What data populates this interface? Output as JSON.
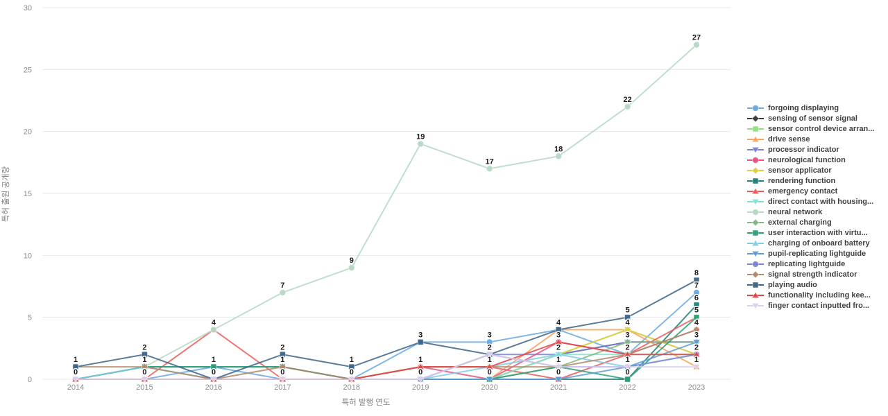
{
  "chart_data": {
    "type": "line",
    "title": "",
    "xlabel": "특허 발행 연도",
    "ylabel": "특허 출원 공개량",
    "x_ticks": [
      "2014",
      "2015",
      "2016",
      "2017",
      "2018",
      "2019",
      "2020",
      "2021",
      "2022",
      "2023"
    ],
    "y_ticks": [
      0,
      5,
      10,
      15,
      20,
      25,
      30
    ],
    "ylim": [
      0,
      30
    ],
    "grid": "horizontal",
    "gridline_color": "#e8e8e8",
    "tick_label_color": "#8c8c8c",
    "point_label_color": "#1a1a1a",
    "legend_position": "right",
    "point_labels": "one bold label per unique value per year, above points",
    "series": [
      {
        "name": "forgoing displaying",
        "color": "#6aa9e0",
        "shape": "circle",
        "values": [
          0,
          0,
          1,
          0,
          0,
          3,
          3,
          4,
          2,
          7
        ]
      },
      {
        "name": "sensing of sensor signal",
        "color": "#3a3a3a",
        "shape": "diamond",
        "values": [
          0,
          0,
          0,
          0,
          0,
          0,
          0,
          2,
          3,
          3
        ]
      },
      {
        "name": "sensor control device arran...",
        "color": "#8ee07f",
        "shape": "square",
        "values": [
          0,
          0,
          0,
          0,
          0,
          0,
          0,
          2,
          4,
          2
        ]
      },
      {
        "name": "drive sense",
        "color": "#f5a25b",
        "shape": "triangle-up",
        "values": [
          0,
          0,
          0,
          0,
          0,
          0,
          0,
          4,
          4,
          1
        ]
      },
      {
        "name": "processor indicator",
        "color": "#7a7fd9",
        "shape": "triangle-down",
        "values": [
          0,
          0,
          0,
          0,
          0,
          0,
          2,
          2,
          3,
          3
        ]
      },
      {
        "name": "neurological function",
        "color": "#e8537f",
        "shape": "circle",
        "values": [
          0,
          0,
          0,
          0,
          0,
          1,
          0,
          3,
          2,
          4
        ]
      },
      {
        "name": "sensor applicator",
        "color": "#e3cb3f",
        "shape": "diamond",
        "values": [
          0,
          0,
          0,
          0,
          0,
          0,
          0,
          2,
          4,
          2
        ]
      },
      {
        "name": "rendering function",
        "color": "#1f8078",
        "shape": "square",
        "values": [
          0,
          1,
          1,
          1,
          0,
          0,
          0,
          0,
          0,
          6
        ]
      },
      {
        "name": "emergency contact",
        "color": "#ee5a5a",
        "shape": "triangle-up",
        "values": [
          0,
          0,
          4,
          0,
          0,
          1,
          1,
          0,
          2,
          5
        ]
      },
      {
        "name": "direct contact with housing...",
        "color": "#7fe3d4",
        "shape": "triangle-down",
        "values": [
          0,
          0,
          0,
          0,
          0,
          0,
          0,
          2,
          2,
          2
        ]
      },
      {
        "name": "neural network",
        "color": "#b5d8c5",
        "shape": "circle",
        "values": [
          0,
          1,
          4,
          7,
          9,
          19,
          17,
          18,
          22,
          27
        ]
      },
      {
        "name": "external charging",
        "color": "#85b585",
        "shape": "diamond",
        "values": [
          0,
          1,
          0,
          0,
          0,
          0,
          0,
          1,
          3,
          3
        ]
      },
      {
        "name": "user interaction with virtu...",
        "color": "#2e9e77",
        "shape": "square",
        "values": [
          0,
          1,
          1,
          1,
          0,
          0,
          0,
          1,
          0,
          5
        ]
      },
      {
        "name": "charging of onboard battery",
        "color": "#7ecbe8",
        "shape": "triangle-up",
        "values": [
          0,
          1,
          0,
          0,
          0,
          0,
          1,
          2,
          1,
          2
        ]
      },
      {
        "name": "pupil-replicating lightguide",
        "color": "#5e9bd4",
        "shape": "triangle-down",
        "values": [
          0,
          0,
          0,
          0,
          0,
          0,
          0,
          0,
          1,
          3
        ]
      },
      {
        "name": "replicating lightguide",
        "color": "#7a85d9",
        "shape": "circle",
        "values": [
          0,
          0,
          0,
          0,
          0,
          0,
          2,
          1,
          1,
          2
        ]
      },
      {
        "name": "signal strength indicator",
        "color": "#b08968",
        "shape": "diamond",
        "values": [
          1,
          1,
          0,
          1,
          0,
          1,
          1,
          1,
          2,
          4
        ]
      },
      {
        "name": "playing audio",
        "color": "#3d6587",
        "shape": "square",
        "values": [
          1,
          2,
          0,
          2,
          1,
          3,
          2,
          4,
          5,
          8
        ]
      },
      {
        "name": "functionality including kee...",
        "color": "#e04545",
        "shape": "triangle-up",
        "values": [
          0,
          0,
          0,
          0,
          0,
          1,
          1,
          3,
          2,
          2
        ]
      },
      {
        "name": "finger contact inputted fro...",
        "color": "#dcd0ea",
        "shape": "triangle-down",
        "values": [
          0,
          0,
          0,
          0,
          0,
          0,
          2,
          1,
          1,
          1
        ]
      }
    ]
  }
}
